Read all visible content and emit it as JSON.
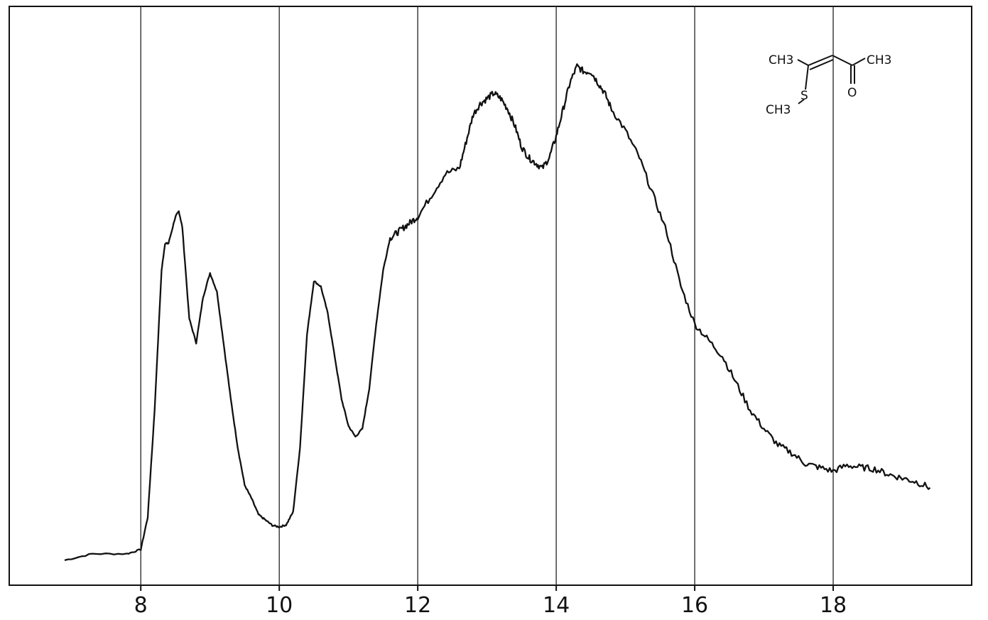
{
  "chart_data": {
    "type": "line",
    "title": "",
    "xlabel": "",
    "ylabel": "",
    "xlim": [
      6.1,
      20.0
    ],
    "ylim": [
      0,
      1
    ],
    "x_ticks": [
      {
        "value": 8,
        "label": "8"
      },
      {
        "value": 10,
        "label": "10"
      },
      {
        "value": 12,
        "label": "12"
      },
      {
        "value": 14,
        "label": "14"
      },
      {
        "value": 16,
        "label": "16"
      },
      {
        "value": 18,
        "label": "18"
      }
    ],
    "grid": "vertical lines at x ticks",
    "y_ticks_shown": false,
    "series": [
      {
        "color": "#111111",
        "x": [
          6.9,
          7.3,
          7.8,
          8.0,
          8.1,
          8.2,
          8.3,
          8.35,
          8.4,
          8.5,
          8.55,
          8.6,
          8.7,
          8.8,
          8.9,
          9.0,
          9.1,
          9.2,
          9.3,
          9.4,
          9.5,
          9.6,
          9.7,
          9.8,
          9.9,
          10.0,
          10.1,
          10.2,
          10.3,
          10.4,
          10.5,
          10.6,
          10.7,
          10.8,
          10.9,
          11.0,
          11.1,
          11.2,
          11.3,
          11.4,
          11.5,
          11.6,
          11.7,
          11.8,
          11.9,
          12.0,
          12.2,
          12.4,
          12.6,
          12.7,
          12.8,
          12.9,
          13.0,
          13.1,
          13.2,
          13.3,
          13.4,
          13.5,
          13.6,
          13.7,
          13.8,
          13.9,
          14.0,
          14.1,
          14.2,
          14.3,
          14.4,
          14.5,
          14.6,
          14.7,
          14.8,
          15.0,
          15.2,
          15.4,
          15.6,
          15.8,
          16.0,
          16.2,
          16.4,
          16.6,
          16.8,
          17.0,
          17.2,
          17.4,
          17.6,
          17.8,
          18.0,
          18.2,
          18.4,
          18.6,
          18.8,
          19.0,
          19.2,
          19.4
        ],
        "y": [
          0.02,
          0.032,
          0.032,
          0.04,
          0.1,
          0.3,
          0.56,
          0.61,
          0.61,
          0.66,
          0.67,
          0.64,
          0.47,
          0.425,
          0.51,
          0.555,
          0.52,
          0.42,
          0.32,
          0.23,
          0.16,
          0.135,
          0.105,
          0.095,
          0.085,
          0.082,
          0.086,
          0.11,
          0.23,
          0.44,
          0.54,
          0.53,
          0.48,
          0.4,
          0.32,
          0.27,
          0.25,
          0.265,
          0.34,
          0.46,
          0.56,
          0.62,
          0.63,
          0.64,
          0.65,
          0.66,
          0.7,
          0.74,
          0.75,
          0.8,
          0.85,
          0.87,
          0.88,
          0.89,
          0.88,
          0.86,
          0.83,
          0.79,
          0.77,
          0.76,
          0.75,
          0.77,
          0.81,
          0.86,
          0.91,
          0.94,
          0.93,
          0.93,
          0.91,
          0.89,
          0.86,
          0.82,
          0.77,
          0.7,
          0.63,
          0.53,
          0.46,
          0.43,
          0.4,
          0.35,
          0.3,
          0.265,
          0.235,
          0.22,
          0.2,
          0.193,
          0.186,
          0.197,
          0.193,
          0.19,
          0.18,
          0.173,
          0.166,
          0.155
        ]
      }
    ],
    "inset_structure": {
      "labels": [
        "CH3",
        "S",
        "CH3",
        "CH3",
        "O"
      ]
    }
  }
}
